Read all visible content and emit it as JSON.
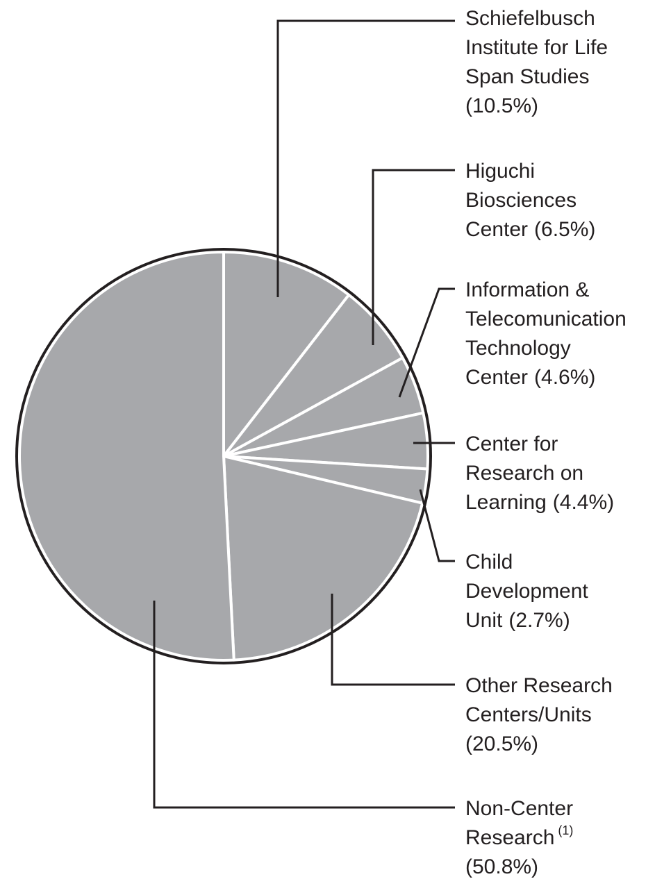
{
  "chart_data": {
    "type": "pie",
    "categories": [
      "Schiefelbusch Institute for Life Span Studies",
      "Higuchi Biosciences Center",
      "Information & Telecomunication Technology Center",
      "Center for Research on Learning",
      "Child Development Unit",
      "Other Research Centers/Units",
      "Non-Center Research"
    ],
    "values": [
      10.5,
      6.5,
      4.6,
      4.4,
      2.7,
      20.5,
      50.8
    ],
    "value_labels": [
      "(10.5%)",
      "(6.5%)",
      "(4.6%)",
      "(4.4%)",
      "(2.7%)",
      "(20.5%)",
      "(50.8%)"
    ],
    "annotations": [
      "(1)"
    ],
    "color": "#a7a8ab"
  }
}
